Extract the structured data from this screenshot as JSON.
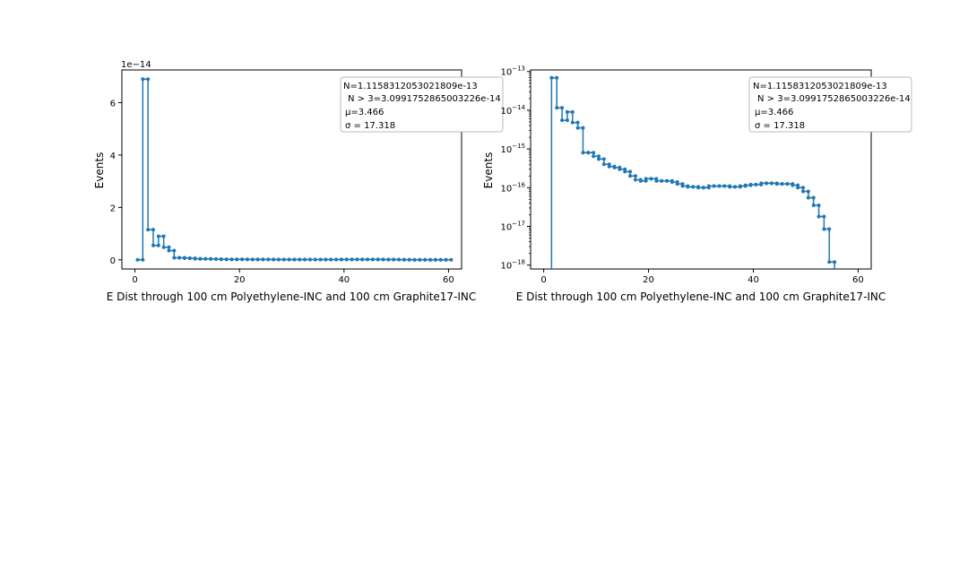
{
  "chart_data": [
    {
      "type": "line",
      "yscale": "linear",
      "xlabel": "E Dist through 100 cm Polyethylene-INC and 100 cm Graphite17-INC",
      "ylabel": "Events",
      "offset_text": "1e−14",
      "xlim": [
        -2.5,
        62.5
      ],
      "ylim": [
        -3.5e-15,
        7.25e-14
      ],
      "xticks": [
        0,
        20,
        40,
        60
      ],
      "xtick_labels": [
        "0",
        "20",
        "40",
        "60"
      ],
      "yticks": [
        0,
        2e-14,
        4e-14,
        6e-14
      ],
      "ytick_labels": [
        "0",
        "2",
        "4",
        "6"
      ],
      "series_color": "#1f77b4",
      "legend": {
        "lines": [
          "N=1.1158312053021809e-13",
          "N > 3=3.0991752865003226e-14",
          "μ=3.466",
          "σ = 17.318"
        ],
        "placement": "upper-right"
      }
    },
    {
      "type": "line",
      "yscale": "log",
      "xlabel": "E Dist through 100 cm Polyethylene-INC and 100 cm Graphite17-INC",
      "ylabel": "Events",
      "xlim": [
        -2.5,
        62.5
      ],
      "ylim_log10": [
        -18.1,
        -12.96
      ],
      "xticks": [
        0,
        20,
        40,
        60
      ],
      "xtick_labels": [
        "0",
        "20",
        "40",
        "60"
      ],
      "yticks_log10": [
        -13,
        -14,
        -15,
        -16,
        -17,
        -18
      ],
      "ytick_labels": [
        {
          "base": "10",
          "exp": "−13"
        },
        {
          "base": "10",
          "exp": "−14"
        },
        {
          "base": "10",
          "exp": "−15"
        },
        {
          "base": "10",
          "exp": "−16"
        },
        {
          "base": "10",
          "exp": "−17"
        },
        {
          "base": "10",
          "exp": "−18"
        }
      ],
      "series_color": "#1f77b4",
      "legend": {
        "lines": [
          "N=1.1158312053021809e-13",
          "N > 3=3.0991752865003226e-14",
          "μ=3.466",
          "σ = 17.318"
        ],
        "placement": "upper-right"
      }
    }
  ],
  "series_data": {
    "step_x": [
      0.5,
      1.5,
      2.5,
      3.5,
      4.5,
      5.5,
      6.5,
      7.5,
      8.5,
      9.5,
      10.5,
      11.5,
      12.5,
      13.5,
      14.5,
      15.5,
      16.5,
      17.5,
      18.5,
      19.5,
      20.5,
      21.5,
      22.5,
      23.5,
      24.5,
      25.5,
      26.5,
      27.5,
      28.5,
      29.5,
      30.5,
      31.5,
      32.5,
      33.5,
      34.5,
      35.5,
      36.5,
      37.5,
      38.5,
      39.5,
      40.5,
      41.5,
      42.5,
      43.5,
      44.5,
      45.5,
      46.5,
      47.5,
      48.5,
      49.5,
      50.5,
      51.5,
      52.5,
      53.5,
      54.5,
      55.5,
      56.5,
      57.5,
      58.5,
      59.5
    ],
    "values": [
      0,
      6.9e-14,
      1.15e-14,
      5.5e-15,
      9e-15,
      4.8e-15,
      3.5e-15,
      8e-16,
      8e-16,
      6.5e-16,
      5.5e-16,
      4e-16,
      3.5e-16,
      3.3e-16,
      3e-16,
      2.6e-16,
      2e-16,
      1.6e-16,
      1.5e-16,
      1.7e-16,
      1.7e-16,
      1.5e-16,
      1.5e-16,
      1.5e-16,
      1.4e-16,
      1.25e-16,
      1.1e-16,
      1.05e-16,
      1.05e-16,
      1e-16,
      1e-16,
      1.1e-16,
      1.1e-16,
      1.1e-16,
      1.1e-16,
      1.05e-16,
      1.05e-16,
      1.1e-16,
      1.15e-16,
      1.2e-16,
      1.2e-16,
      1.3e-16,
      1.3e-16,
      1.3e-16,
      1.25e-16,
      1.25e-16,
      1.25e-16,
      1.15e-16,
      1e-16,
      8e-17,
      5.5e-17,
      3.5e-17,
      1.8e-17,
      8.5e-18,
      1.2e-18,
      0,
      0,
      0,
      0,
      0
    ]
  }
}
